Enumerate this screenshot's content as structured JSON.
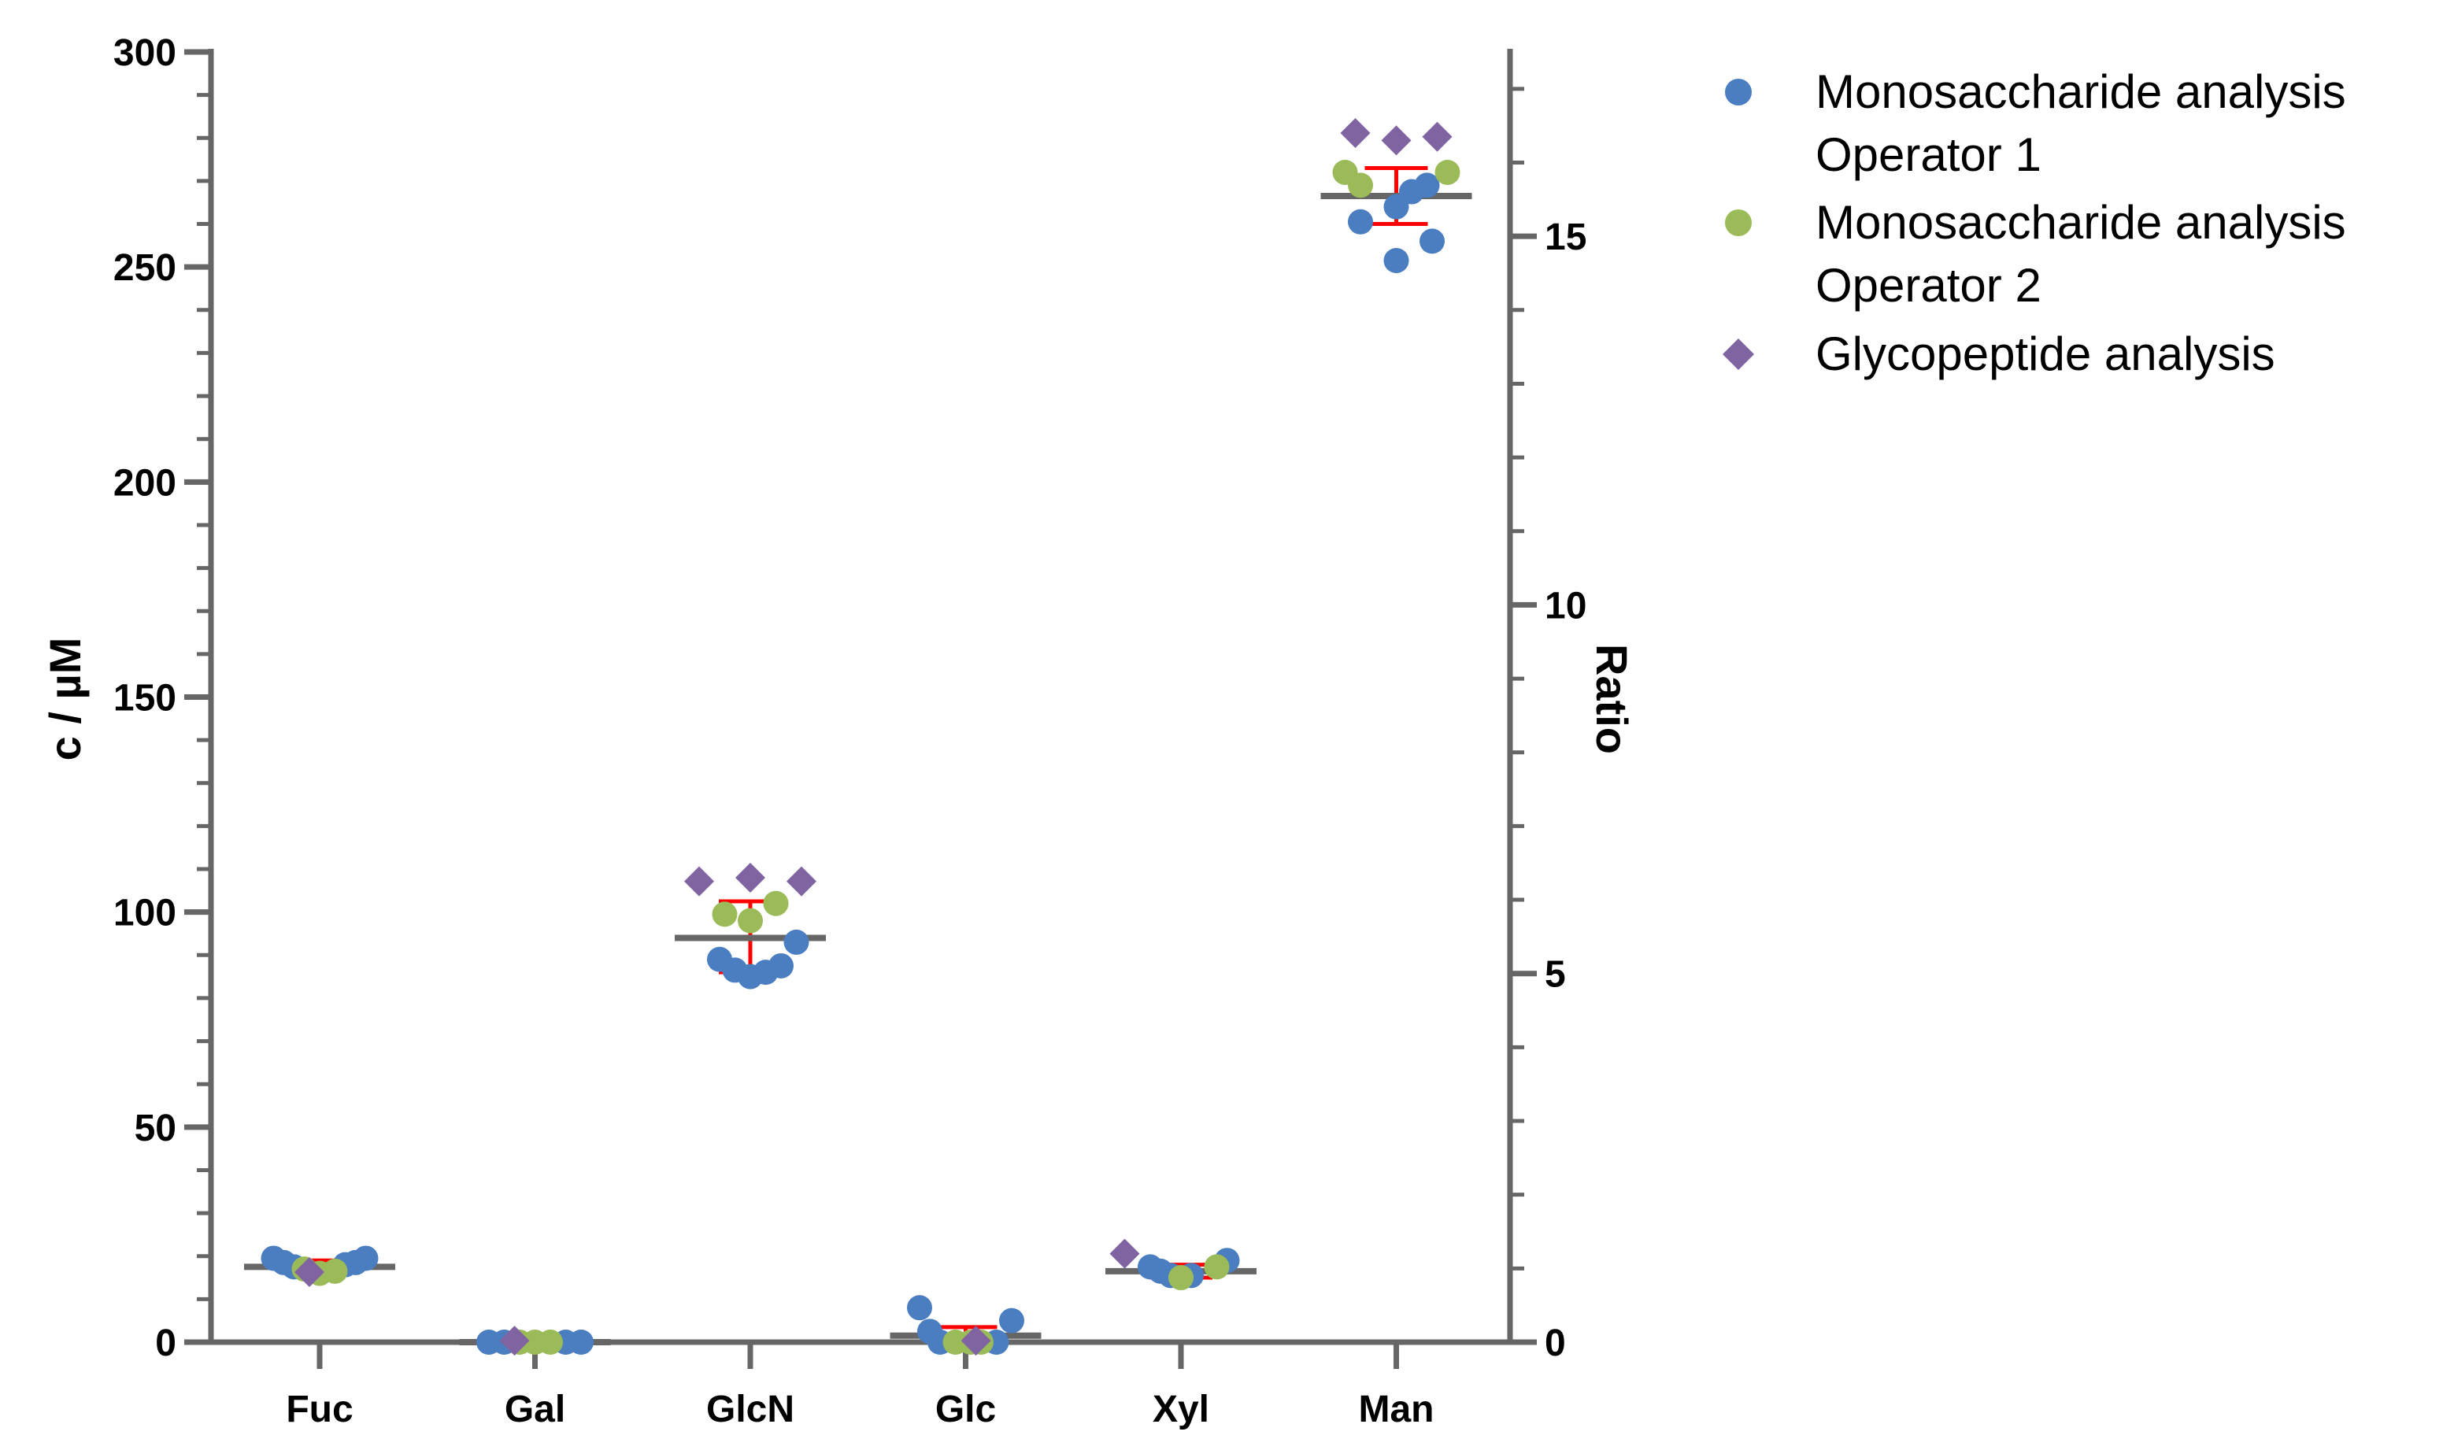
{
  "chart_data": {
    "type": "scatter",
    "ylabel": "c / µM",
    "y2label": "Ratio",
    "ylim": [
      0,
      300
    ],
    "y2lim": [
      0,
      17.5
    ],
    "yticks": [
      0,
      50,
      100,
      150,
      200,
      250,
      300
    ],
    "y2ticks": [
      0,
      5,
      10,
      15
    ],
    "categories": [
      "Fuc",
      "Gal",
      "GlcN",
      "Glc",
      "Xyl",
      "Man"
    ],
    "colors": {
      "op1": "#4a7ec0",
      "op2": "#9bbb59",
      "glyco": "#8064a2",
      "mean": "#666666",
      "error": "#ff0000",
      "axis": "#666666"
    },
    "series": [
      {
        "name": "Monosaccharide analysis Operator 1",
        "legend_lines": [
          "Monosaccharide analysis",
          "Operator 1"
        ],
        "marker": "circle",
        "axis": "left",
        "points": [
          {
            "cat": 0,
            "offset": -0.45,
            "y": 19.5
          },
          {
            "cat": 0,
            "offset": -0.35,
            "y": 18.5
          },
          {
            "cat": 0,
            "offset": -0.25,
            "y": 17.5
          },
          {
            "cat": 0,
            "offset": 0.25,
            "y": 18
          },
          {
            "cat": 0,
            "offset": 0.35,
            "y": 18.5
          },
          {
            "cat": 0,
            "offset": 0.45,
            "y": 19.5
          },
          {
            "cat": 1,
            "offset": -0.45,
            "y": 0
          },
          {
            "cat": 1,
            "offset": -0.3,
            "y": 0
          },
          {
            "cat": 1,
            "offset": 0.3,
            "y": 0
          },
          {
            "cat": 1,
            "offset": 0.45,
            "y": 0
          },
          {
            "cat": 2,
            "offset": -0.3,
            "y": 89
          },
          {
            "cat": 2,
            "offset": -0.15,
            "y": 86.5
          },
          {
            "cat": 2,
            "offset": 0.0,
            "y": 85
          },
          {
            "cat": 2,
            "offset": 0.15,
            "y": 86
          },
          {
            "cat": 2,
            "offset": 0.3,
            "y": 87.5
          },
          {
            "cat": 2,
            "offset": 0.45,
            "y": 93
          },
          {
            "cat": 3,
            "offset": -0.45,
            "y": 8
          },
          {
            "cat": 3,
            "offset": -0.35,
            "y": 2.5
          },
          {
            "cat": 3,
            "offset": -0.25,
            "y": 0
          },
          {
            "cat": 3,
            "offset": 0.3,
            "y": 0
          },
          {
            "cat": 3,
            "offset": 0.45,
            "y": 5
          },
          {
            "cat": 4,
            "offset": -0.3,
            "y": 17.5
          },
          {
            "cat": 4,
            "offset": -0.2,
            "y": 16.5
          },
          {
            "cat": 4,
            "offset": -0.1,
            "y": 15.5
          },
          {
            "cat": 4,
            "offset": 0.1,
            "y": 15.5
          },
          {
            "cat": 4,
            "offset": 0.45,
            "y": 19
          },
          {
            "cat": 5,
            "offset": -0.35,
            "y": 260.5
          },
          {
            "cat": 5,
            "offset": 0.0,
            "y": 264
          },
          {
            "cat": 5,
            "offset": 0.15,
            "y": 267.5
          },
          {
            "cat": 5,
            "offset": 0.3,
            "y": 269
          },
          {
            "cat": 5,
            "offset": 0.0,
            "y": 251.5
          },
          {
            "cat": 5,
            "offset": 0.35,
            "y": 256
          }
        ]
      },
      {
        "name": "Monosaccharide analysis Operator 2",
        "legend_lines": [
          "Monosaccharide analysis",
          "Operator 2"
        ],
        "marker": "circle",
        "axis": "left",
        "points": [
          {
            "cat": 0,
            "offset": -0.15,
            "y": 17
          },
          {
            "cat": 0,
            "offset": 0.0,
            "y": 16
          },
          {
            "cat": 0,
            "offset": 0.15,
            "y": 16.5
          },
          {
            "cat": 1,
            "offset": -0.15,
            "y": 0
          },
          {
            "cat": 1,
            "offset": 0.0,
            "y": 0
          },
          {
            "cat": 1,
            "offset": 0.15,
            "y": 0
          },
          {
            "cat": 2,
            "offset": -0.25,
            "y": 99.5
          },
          {
            "cat": 2,
            "offset": 0.0,
            "y": 98
          },
          {
            "cat": 2,
            "offset": 0.25,
            "y": 102
          },
          {
            "cat": 3,
            "offset": -0.1,
            "y": 0
          },
          {
            "cat": 3,
            "offset": 0.05,
            "y": 0
          },
          {
            "cat": 3,
            "offset": 0.15,
            "y": 0
          },
          {
            "cat": 4,
            "offset": 0.0,
            "y": 15
          },
          {
            "cat": 4,
            "offset": 0.35,
            "y": 17.5
          },
          {
            "cat": 5,
            "offset": -0.5,
            "y": 272
          },
          {
            "cat": 5,
            "offset": -0.35,
            "y": 269
          },
          {
            "cat": 5,
            "offset": 0.5,
            "y": 272
          }
        ]
      },
      {
        "name": "Glycopeptide analysis",
        "legend_lines": [
          "Glycopeptide analysis"
        ],
        "marker": "diamond",
        "axis": "right",
        "points": [
          {
            "cat": 0,
            "offset": -0.1,
            "y": 0.95
          },
          {
            "cat": 1,
            "offset": -0.2,
            "y": 0.02
          },
          {
            "cat": 2,
            "offset": -0.5,
            "y": 6.25
          },
          {
            "cat": 2,
            "offset": 0.0,
            "y": 6.3
          },
          {
            "cat": 2,
            "offset": 0.5,
            "y": 6.25
          },
          {
            "cat": 3,
            "offset": 0.1,
            "y": 0.02
          },
          {
            "cat": 4,
            "offset": -0.55,
            "y": 1.2
          },
          {
            "cat": 5,
            "offset": -0.4,
            "y": 16.4
          },
          {
            "cat": 5,
            "offset": 0.0,
            "y": 16.3
          },
          {
            "cat": 5,
            "offset": 0.4,
            "y": 16.35
          }
        ]
      }
    ],
    "summary": [
      {
        "cat": 0,
        "mean": 17.5,
        "err_low": 16.5,
        "err_high": 19
      },
      {
        "cat": 1,
        "mean": 0,
        "err_low": 0,
        "err_high": 0
      },
      {
        "cat": 2,
        "mean": 94,
        "err_low": 86,
        "err_high": 102.5
      },
      {
        "cat": 3,
        "mean": 1.5,
        "err_low": 0,
        "err_high": 3.5
      },
      {
        "cat": 4,
        "mean": 16.5,
        "err_low": 15,
        "err_high": 18
      },
      {
        "cat": 5,
        "mean": 266.5,
        "err_low": 260,
        "err_high": 273
      }
    ]
  }
}
